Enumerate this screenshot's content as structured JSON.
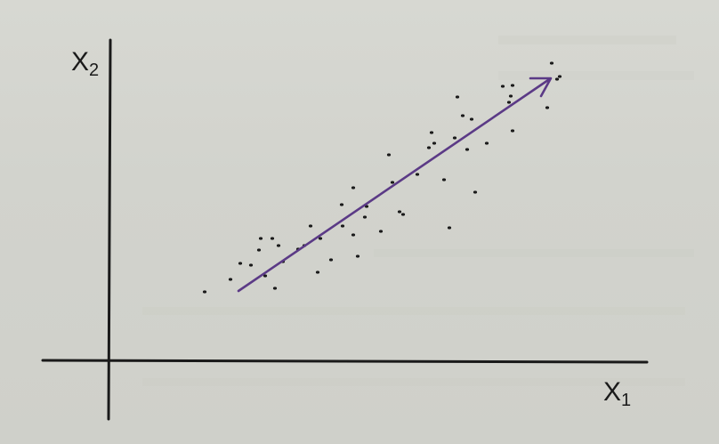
{
  "axes": {
    "x_label": {
      "base": "X",
      "sub": "1"
    },
    "y_label": {
      "base": "X",
      "sub": "2"
    }
  },
  "colors": {
    "ink": "#1a1a1a",
    "arrow": "#5b3a86",
    "paper": "#d4d5cf"
  }
}
